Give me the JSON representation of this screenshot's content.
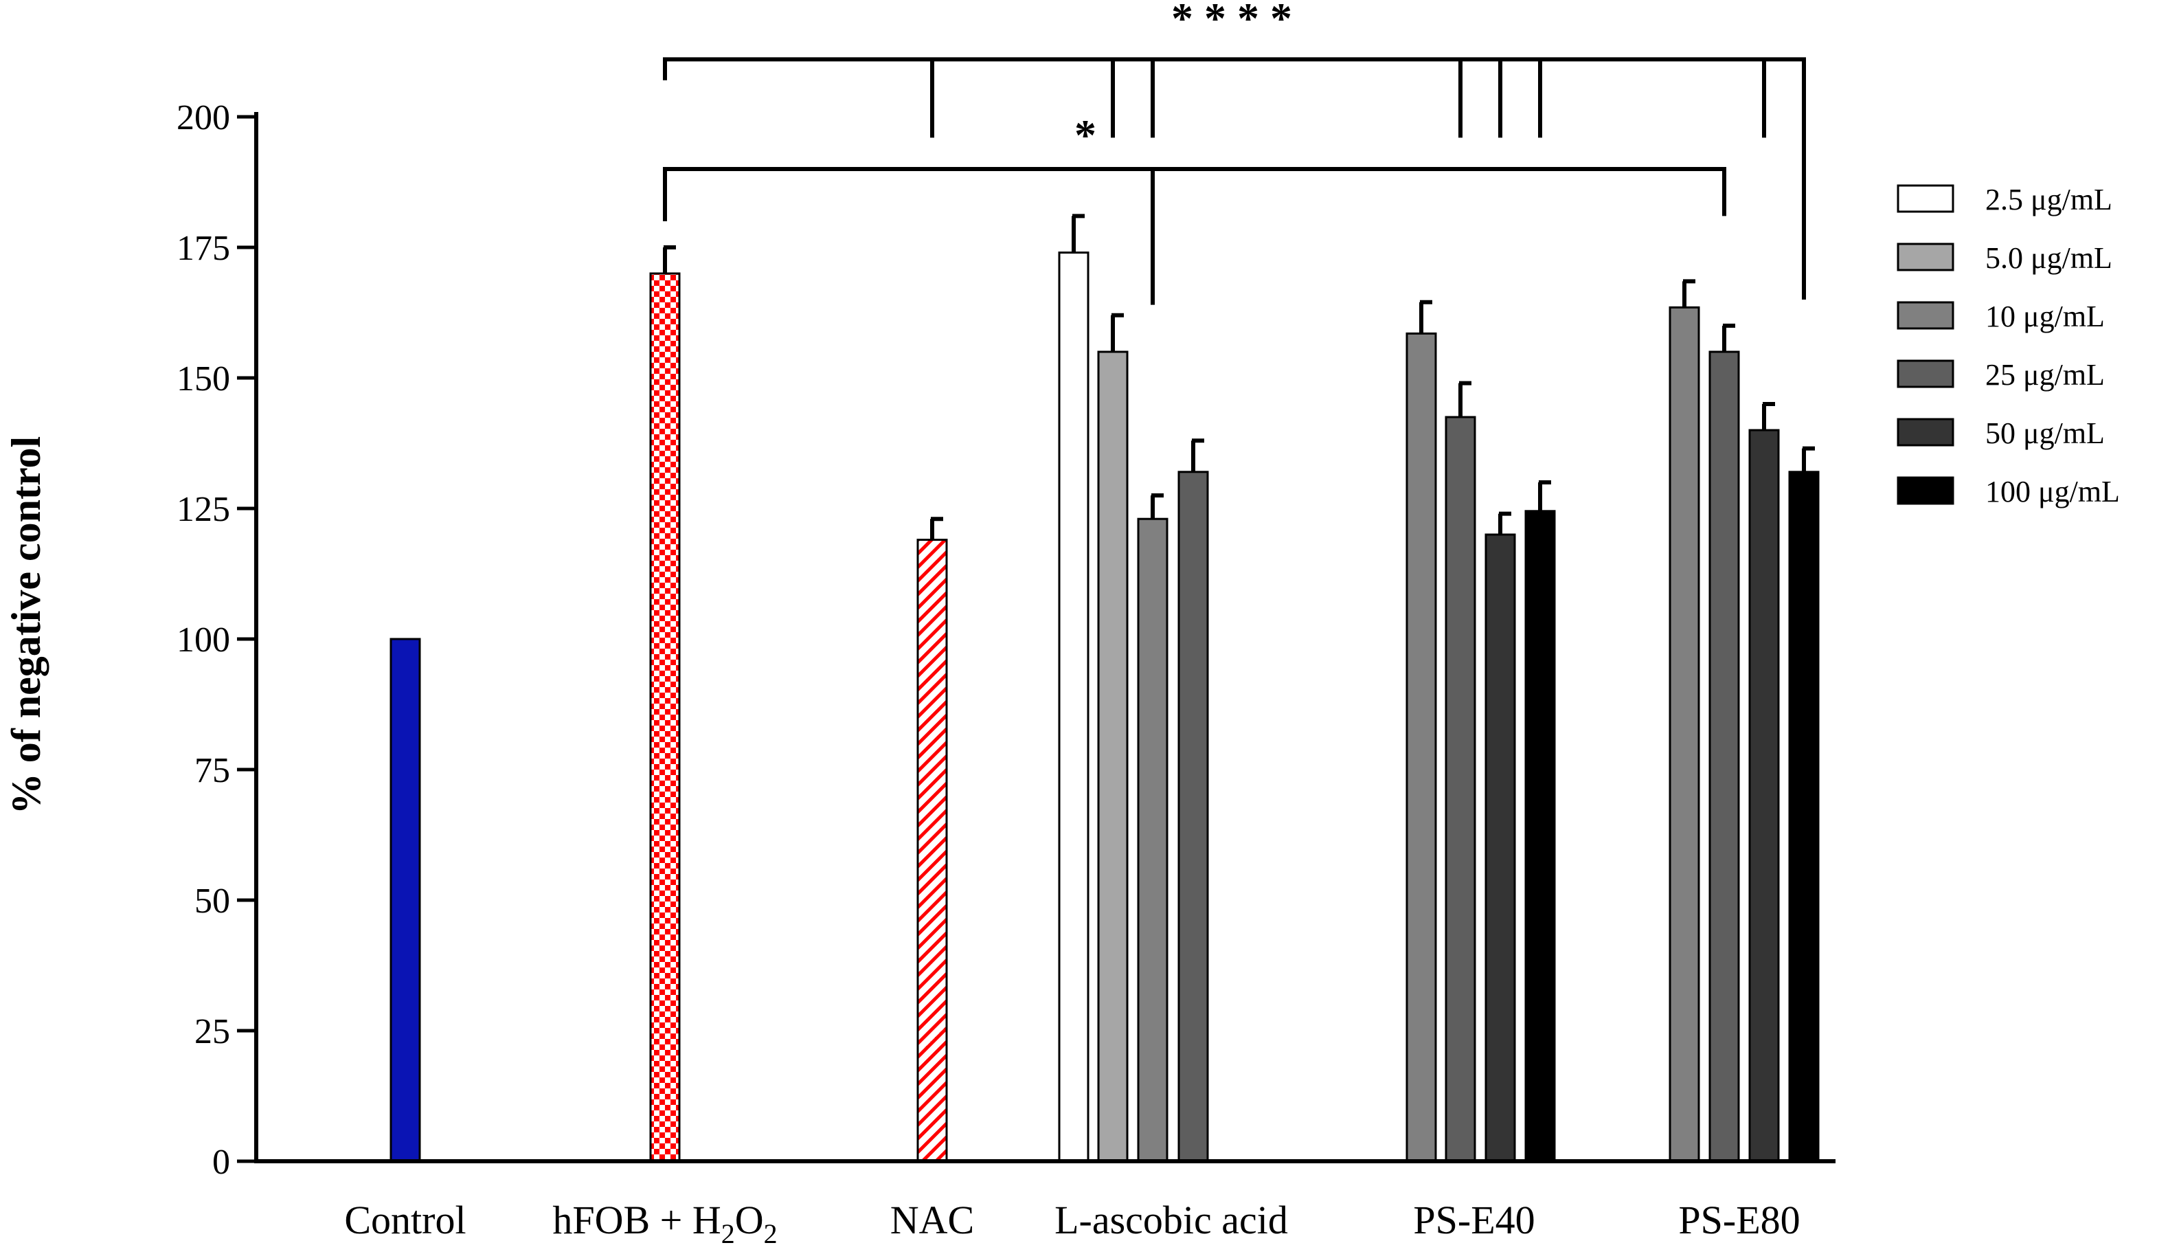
{
  "chart_data": {
    "type": "bar",
    "title": "",
    "xlabel": "",
    "ylabel": "% of negative control",
    "ylim": [
      0,
      200
    ],
    "yticks": [
      "0",
      "25",
      "50",
      "75",
      "100",
      "125",
      "150",
      "175",
      "200"
    ],
    "categories": [
      {
        "name": "Control",
        "label": "Control"
      },
      {
        "name": "hfob",
        "label_main": "hFOB + H",
        "label_sub1": "2",
        "label_mid": "O",
        "label_sub2": "2"
      },
      {
        "name": "NAC",
        "label": "NAC"
      },
      {
        "name": "L-ascobic acid",
        "label": "L-ascobic acid"
      },
      {
        "name": "PS-E40",
        "label": "PS-E40"
      },
      {
        "name": "PS-E80",
        "label": "PS-E80"
      }
    ],
    "legend": [
      {
        "label": "2.5 μg/mL",
        "color": "#ffffff"
      },
      {
        "label": "5.0 μg/mL",
        "color": "#a6a6a6"
      },
      {
        "label": "10 μg/mL",
        "color": "#808080"
      },
      {
        "label": "25 μg/mL",
        "color": "#5e5e5e"
      },
      {
        "label": "50 μg/mL",
        "color": "#343434"
      },
      {
        "label": "100 μg/mL",
        "color": "#000000"
      }
    ],
    "bars": [
      {
        "category": "Control",
        "series": "control",
        "value": 100,
        "error": 0,
        "fill": "#0a14b4",
        "pattern": "solid"
      },
      {
        "category": "hfob",
        "series": "hFOB + H2O2",
        "value": 170,
        "error": 5,
        "fill": "#ff0000",
        "pattern": "checker"
      },
      {
        "category": "NAC",
        "series": "NAC",
        "value": 119,
        "error": 4,
        "fill": "#ff0000",
        "pattern": "hatch"
      },
      {
        "category": "L-ascobic acid",
        "series": "2.5 μg/mL",
        "value": 174,
        "error": 7,
        "fill": "#ffffff",
        "pattern": "solid"
      },
      {
        "category": "L-ascobic acid",
        "series": "5.0 μg/mL",
        "value": 155,
        "error": 7,
        "fill": "#a6a6a6",
        "pattern": "solid"
      },
      {
        "category": "L-ascobic acid",
        "series": "10 μg/mL",
        "value": 123,
        "error": 4.5,
        "fill": "#808080",
        "pattern": "solid"
      },
      {
        "category": "L-ascobic acid",
        "series": "25 μg/mL",
        "value": 132,
        "error": 6,
        "fill": "#5e5e5e",
        "pattern": "solid"
      },
      {
        "category": "PS-E40",
        "series": "10 μg/mL",
        "value": 158.5,
        "error": 6,
        "fill": "#808080",
        "pattern": "solid"
      },
      {
        "category": "PS-E40",
        "series": "25 μg/mL",
        "value": 142.5,
        "error": 6.5,
        "fill": "#5e5e5e",
        "pattern": "solid"
      },
      {
        "category": "PS-E40",
        "series": "50 μg/mL",
        "value": 120,
        "error": 4,
        "fill": "#343434",
        "pattern": "solid"
      },
      {
        "category": "PS-E40",
        "series": "100 μg/mL",
        "value": 124.5,
        "error": 5.5,
        "fill": "#000000",
        "pattern": "solid"
      },
      {
        "category": "PS-E80",
        "series": "10 μg/mL",
        "value": 163.5,
        "error": 5,
        "fill": "#808080",
        "pattern": "solid"
      },
      {
        "category": "PS-E80",
        "series": "25 μg/mL",
        "value": 155,
        "error": 5,
        "fill": "#5e5e5e",
        "pattern": "solid"
      },
      {
        "category": "PS-E80",
        "series": "50 μg/mL",
        "value": 140,
        "error": 5,
        "fill": "#343434",
        "pattern": "solid"
      },
      {
        "category": "PS-E80",
        "series": "100 μg/mL",
        "value": 132,
        "error": 4.5,
        "fill": "#000000",
        "pattern": "solid"
      }
    ],
    "significance": [
      {
        "label": "* * * *",
        "level_value": 211,
        "from_bar": 1,
        "to_bar": 14,
        "drops": [
          [
            1,
            207
          ],
          [
            2,
            196
          ],
          [
            4,
            196
          ],
          [
            5,
            196
          ],
          [
            8,
            196
          ],
          [
            9,
            196
          ],
          [
            10,
            196
          ],
          [
            13,
            196
          ],
          [
            14,
            165
          ]
        ]
      },
      {
        "label": "*",
        "level_value": 190,
        "from_bar": 1,
        "to_bar": 12,
        "drops": [
          [
            1,
            180
          ],
          [
            5,
            164
          ],
          [
            12,
            181
          ]
        ]
      }
    ]
  }
}
